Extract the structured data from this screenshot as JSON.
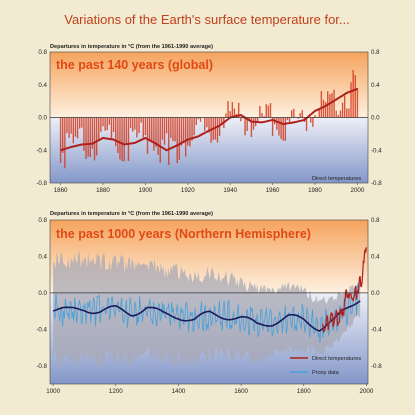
{
  "title": "Variations of the Earth's surface temperature for...",
  "colors": {
    "page_bg": "#f3ead2",
    "warm_top": "#f6a35e",
    "warm_bottom": "#fdf1e0",
    "cool_top": "#eef0f7",
    "cool_bottom": "#8397c9",
    "bars": "#d23a1e",
    "smooth_red": "#b0201c",
    "smooth_navy": "#1a1a5a",
    "proxy": "#4aa0d8",
    "uncertainty": "#a8a8b4",
    "title": "#c0401b",
    "heading": "#e04a14"
  },
  "chart_data": [
    {
      "type": "bar",
      "heading": "the past 140 years (global)",
      "ylabel": "Departures in temperature in °C (from the 1961-1990 average)",
      "xlim": [
        1855,
        2005
      ],
      "ylim": [
        -0.8,
        0.8
      ],
      "xticks": [
        "1860",
        "1880",
        "1900",
        "1920",
        "1940",
        "1960",
        "1980",
        "2000"
      ],
      "yticks": [
        "0.8",
        "0.4",
        "0.0",
        "-0.4",
        "-0.8"
      ],
      "grid": false,
      "legend": {
        "position": "bottom-right",
        "entries": [
          {
            "name": "Direct temperatures",
            "style": "bars"
          }
        ]
      },
      "smooth": {
        "x": [
          1860,
          1865,
          1870,
          1875,
          1880,
          1885,
          1890,
          1895,
          1900,
          1905,
          1910,
          1915,
          1920,
          1925,
          1930,
          1935,
          1940,
          1945,
          1950,
          1955,
          1960,
          1965,
          1970,
          1975,
          1980,
          1985,
          1990,
          1995,
          2000
        ],
        "y": [
          -0.4,
          -0.36,
          -0.33,
          -0.32,
          -0.25,
          -0.27,
          -0.33,
          -0.31,
          -0.25,
          -0.32,
          -0.4,
          -0.34,
          -0.27,
          -0.23,
          -0.16,
          -0.1,
          0.0,
          0.03,
          -0.05,
          -0.06,
          -0.03,
          -0.08,
          -0.06,
          -0.03,
          0.08,
          0.14,
          0.22,
          0.3,
          0.35
        ]
      },
      "bar_extremes": [
        {
          "x": 1862,
          "y": -0.62
        },
        {
          "x": 1911,
          "y": -0.58
        },
        {
          "x": 1944,
          "y": 0.18
        },
        {
          "x": 1998,
          "y": 0.58
        }
      ]
    },
    {
      "type": "line",
      "heading": "the past 1000 years (Northern Hemisphere)",
      "ylabel": "Departures in temperature in °C (from the 1961-1990 average)",
      "xlim": [
        990,
        2005
      ],
      "ylim": [
        -1.0,
        0.8
      ],
      "xticks": [
        "1000",
        "1200",
        "1400",
        "1600",
        "1800",
        "2000"
      ],
      "yticks": [
        "0.8",
        "0.4",
        "0.0",
        "-0.4",
        "-0.8"
      ],
      "grid": false,
      "legend": {
        "position": "bottom-right",
        "entries": [
          {
            "name": "Direct temperatures",
            "style": "red-line"
          },
          {
            "name": "Proxy data",
            "style": "blue-line"
          }
        ]
      },
      "series": [
        {
          "name": "Proxy data",
          "x": [
            1000,
            1050,
            1100,
            1150,
            1200,
            1250,
            1300,
            1350,
            1400,
            1450,
            1500,
            1550,
            1600,
            1650,
            1700,
            1750,
            1800,
            1850,
            1900,
            1950,
            1980
          ],
          "y": [
            -0.18,
            -0.2,
            -0.17,
            -0.2,
            -0.18,
            -0.22,
            -0.16,
            -0.24,
            -0.25,
            -0.3,
            -0.23,
            -0.25,
            -0.28,
            -0.35,
            -0.32,
            -0.27,
            -0.3,
            -0.38,
            -0.3,
            -0.15,
            -0.05
          ]
        },
        {
          "name": "Direct temperatures",
          "x": [
            1860,
            1880,
            1900,
            1920,
            1940,
            1960,
            1980,
            1990,
            2000
          ],
          "y": [
            -0.4,
            -0.3,
            -0.3,
            -0.25,
            0.0,
            -0.05,
            0.1,
            0.25,
            0.55
          ]
        }
      ],
      "uncertainty": {
        "x": [
          1000,
          1200,
          1400,
          1600,
          1800,
          1900,
          1980
        ],
        "half_width": [
          0.55,
          0.52,
          0.48,
          0.4,
          0.32,
          0.25,
          0.18
        ]
      }
    }
  ]
}
